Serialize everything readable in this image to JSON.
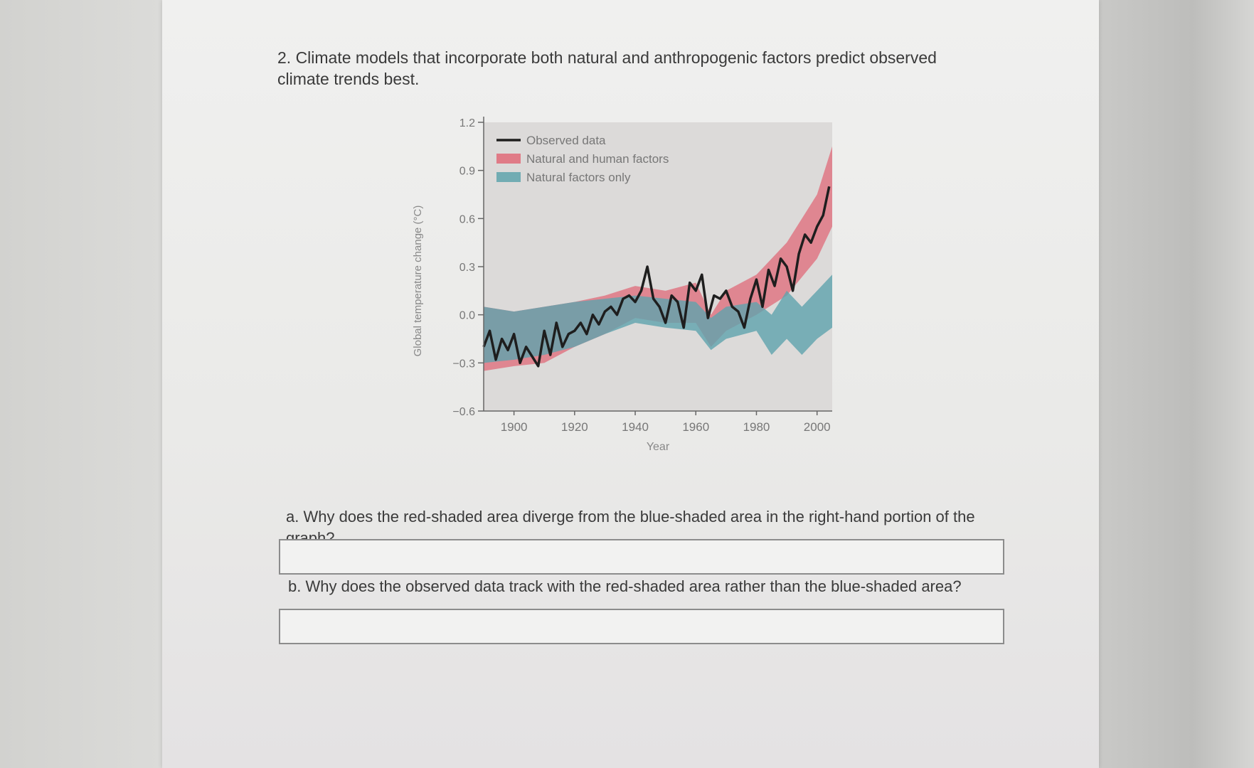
{
  "question": {
    "title": "2. Climate models that incorporate both natural and anthropogenic factors predict observed climate trends best.",
    "part_a": "a. Why does the red-shaded area diverge from the blue-shaded area in the right-hand portion of the graph?",
    "part_b": "b. Why does the observed data track with the red-shaded area rather than the blue-shaded area?"
  },
  "answers": {
    "a": "",
    "b": ""
  },
  "colors": {
    "observed": "#1e1e1e",
    "natural_and_human": "#e06a78",
    "natural_only": "#5fa3ac"
  },
  "chart_data": {
    "type": "area",
    "title": "",
    "xlabel": "Year",
    "ylabel": "Global temperature change (°C)",
    "xlim": [
      1890,
      2005
    ],
    "ylim": [
      -0.6,
      1.2
    ],
    "x_ticks": [
      1900,
      1920,
      1940,
      1960,
      1980,
      2000
    ],
    "y_ticks": [
      -0.6,
      -0.3,
      0.0,
      0.3,
      0.6,
      0.9,
      1.2
    ],
    "y_tick_labels": [
      "−0.6",
      "−0.3",
      "0.0",
      "0.3",
      "0.6",
      "0.9",
      "1.2"
    ],
    "legend_position": "top-left",
    "series": [
      {
        "name": "Observed data",
        "kind": "line",
        "x": [
          1890,
          1892,
          1894,
          1896,
          1898,
          1900,
          1902,
          1904,
          1906,
          1908,
          1910,
          1912,
          1914,
          1916,
          1918,
          1920,
          1922,
          1924,
          1926,
          1928,
          1930,
          1932,
          1934,
          1936,
          1938,
          1940,
          1942,
          1944,
          1946,
          1948,
          1950,
          1952,
          1954,
          1956,
          1958,
          1960,
          1962,
          1964,
          1966,
          1968,
          1970,
          1972,
          1974,
          1976,
          1978,
          1980,
          1982,
          1984,
          1986,
          1988,
          1990,
          1992,
          1994,
          1996,
          1998,
          2000,
          2002,
          2004
        ],
        "y": [
          -0.2,
          -0.1,
          -0.28,
          -0.15,
          -0.22,
          -0.12,
          -0.3,
          -0.2,
          -0.26,
          -0.32,
          -0.1,
          -0.25,
          -0.05,
          -0.2,
          -0.12,
          -0.1,
          -0.05,
          -0.12,
          0.0,
          -0.06,
          0.02,
          0.05,
          0.0,
          0.1,
          0.12,
          0.08,
          0.15,
          0.3,
          0.1,
          0.05,
          -0.05,
          0.12,
          0.08,
          -0.08,
          0.2,
          0.15,
          0.25,
          -0.02,
          0.12,
          0.1,
          0.15,
          0.05,
          0.02,
          -0.08,
          0.1,
          0.22,
          0.05,
          0.28,
          0.18,
          0.35,
          0.3,
          0.15,
          0.38,
          0.5,
          0.45,
          0.55,
          0.62,
          0.8
        ]
      },
      {
        "name": "Natural and human factors",
        "kind": "band",
        "x": [
          1890,
          1900,
          1910,
          1920,
          1930,
          1940,
          1950,
          1960,
          1965,
          1970,
          1980,
          1990,
          2000,
          2005
        ],
        "low": [
          -0.35,
          -0.32,
          -0.3,
          -0.2,
          -0.12,
          -0.02,
          -0.05,
          -0.05,
          -0.2,
          -0.1,
          0.0,
          0.12,
          0.35,
          0.55
        ],
        "high": [
          0.05,
          0.02,
          0.05,
          0.08,
          0.12,
          0.18,
          0.15,
          0.2,
          0.0,
          0.15,
          0.25,
          0.45,
          0.75,
          1.05
        ]
      },
      {
        "name": "Natural factors only",
        "kind": "band",
        "x": [
          1890,
          1900,
          1910,
          1920,
          1930,
          1940,
          1950,
          1960,
          1965,
          1970,
          1980,
          1985,
          1990,
          1995,
          2000,
          2005
        ],
        "low": [
          -0.3,
          -0.28,
          -0.25,
          -0.2,
          -0.12,
          -0.05,
          -0.08,
          -0.1,
          -0.22,
          -0.15,
          -0.1,
          -0.25,
          -0.15,
          -0.25,
          -0.15,
          -0.08
        ],
        "high": [
          0.05,
          0.02,
          0.05,
          0.08,
          0.1,
          0.12,
          0.1,
          0.08,
          -0.02,
          0.05,
          0.08,
          0.0,
          0.15,
          0.05,
          0.15,
          0.25
        ]
      }
    ]
  }
}
